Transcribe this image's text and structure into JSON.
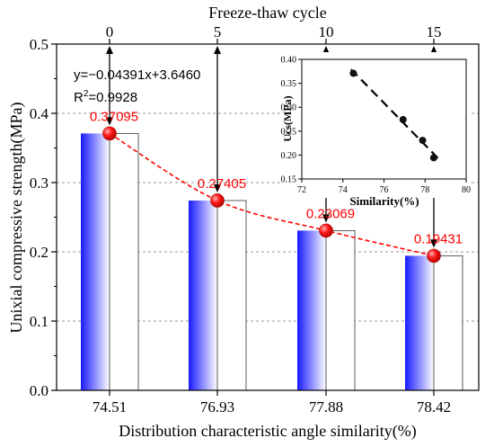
{
  "chart_data": {
    "type": "bar",
    "title": "",
    "xlabel": "Distribution characteristic angle similarity(%)",
    "ylabel": "Unixial compressive strength(MPa)",
    "top_axis_label": "Freeze-thaw cycle",
    "top_ticks": [
      "0",
      "5",
      "10",
      "15"
    ],
    "categories": [
      "74.51",
      "76.93",
      "77.88",
      "78.42"
    ],
    "ylim": [
      0,
      0.5
    ],
    "yticks": [
      "0.0",
      "0.1",
      "0.2",
      "0.3",
      "0.4",
      "0.5"
    ],
    "grid": true,
    "series": [
      {
        "values": [
          0.37095,
          0.27405,
          0.23069,
          0.19431
        ],
        "color": "#1a1aff"
      }
    ],
    "data_labels": [
      "0.37095",
      "0.27405",
      "0.23069",
      "0.19431"
    ],
    "fit_line": {
      "color": "#ff0000",
      "marker_color": "#e00000"
    },
    "equation": "y=−0.04391x+3.6460",
    "r2_prefix": "R",
    "r2_sup": "2",
    "r2_value": "=0.9928",
    "inset": {
      "type": "scatter",
      "xlabel": "Similarity(%)",
      "ylabel": "Ucs(MPa)",
      "xlim": [
        72,
        80
      ],
      "ylim": [
        0.15,
        0.4
      ],
      "xticks": [
        "72",
        "74",
        "76",
        "78",
        "80"
      ],
      "yticks": [
        "0.15",
        "0.20",
        "0.25",
        "0.30",
        "0.35",
        "0.40"
      ],
      "x": [
        74.51,
        76.93,
        77.88,
        78.42
      ],
      "y": [
        0.37095,
        0.27405,
        0.23069,
        0.19431
      ]
    }
  }
}
